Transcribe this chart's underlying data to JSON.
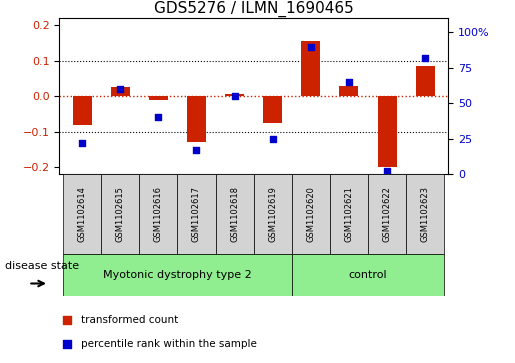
{
  "title": "GDS5276 / ILMN_1690465",
  "samples": [
    "GSM1102614",
    "GSM1102615",
    "GSM1102616",
    "GSM1102617",
    "GSM1102618",
    "GSM1102619",
    "GSM1102620",
    "GSM1102621",
    "GSM1102622",
    "GSM1102623"
  ],
  "red_values": [
    -0.08,
    0.025,
    -0.012,
    -0.13,
    0.005,
    -0.075,
    0.155,
    0.03,
    -0.2,
    0.085
  ],
  "blue_values": [
    22,
    60,
    40,
    17,
    55,
    25,
    90,
    65,
    2,
    82
  ],
  "ylim_left": [
    -0.22,
    0.22
  ],
  "ylim_right": [
    0,
    110
  ],
  "yticks_left": [
    -0.2,
    -0.1,
    0.0,
    0.1,
    0.2
  ],
  "yticks_right": [
    0,
    25,
    50,
    75,
    100
  ],
  "ytick_labels_right": [
    "0",
    "25",
    "50",
    "75",
    "100%"
  ],
  "red_color": "#cc2200",
  "blue_color": "#0000cc",
  "bar_width": 0.5,
  "group1_label": "Myotonic dystrophy type 2",
  "group2_label": "control",
  "group1_indices": [
    0,
    1,
    2,
    3,
    4,
    5
  ],
  "group2_indices": [
    6,
    7,
    8,
    9
  ],
  "disease_state_label": "disease state",
  "legend_red": "transformed count",
  "legend_blue": "percentile rank within the sample",
  "bg_color": "#ffffff",
  "plot_bg_color": "#ffffff",
  "zero_line_color": "#cc2200",
  "group_box_color": "#90ee90",
  "sample_box_color": "#d3d3d3",
  "title_fontsize": 11,
  "tick_fontsize": 8,
  "sample_fontsize": 6,
  "group_fontsize": 8,
  "legend_fontsize": 7.5,
  "disease_fontsize": 8
}
